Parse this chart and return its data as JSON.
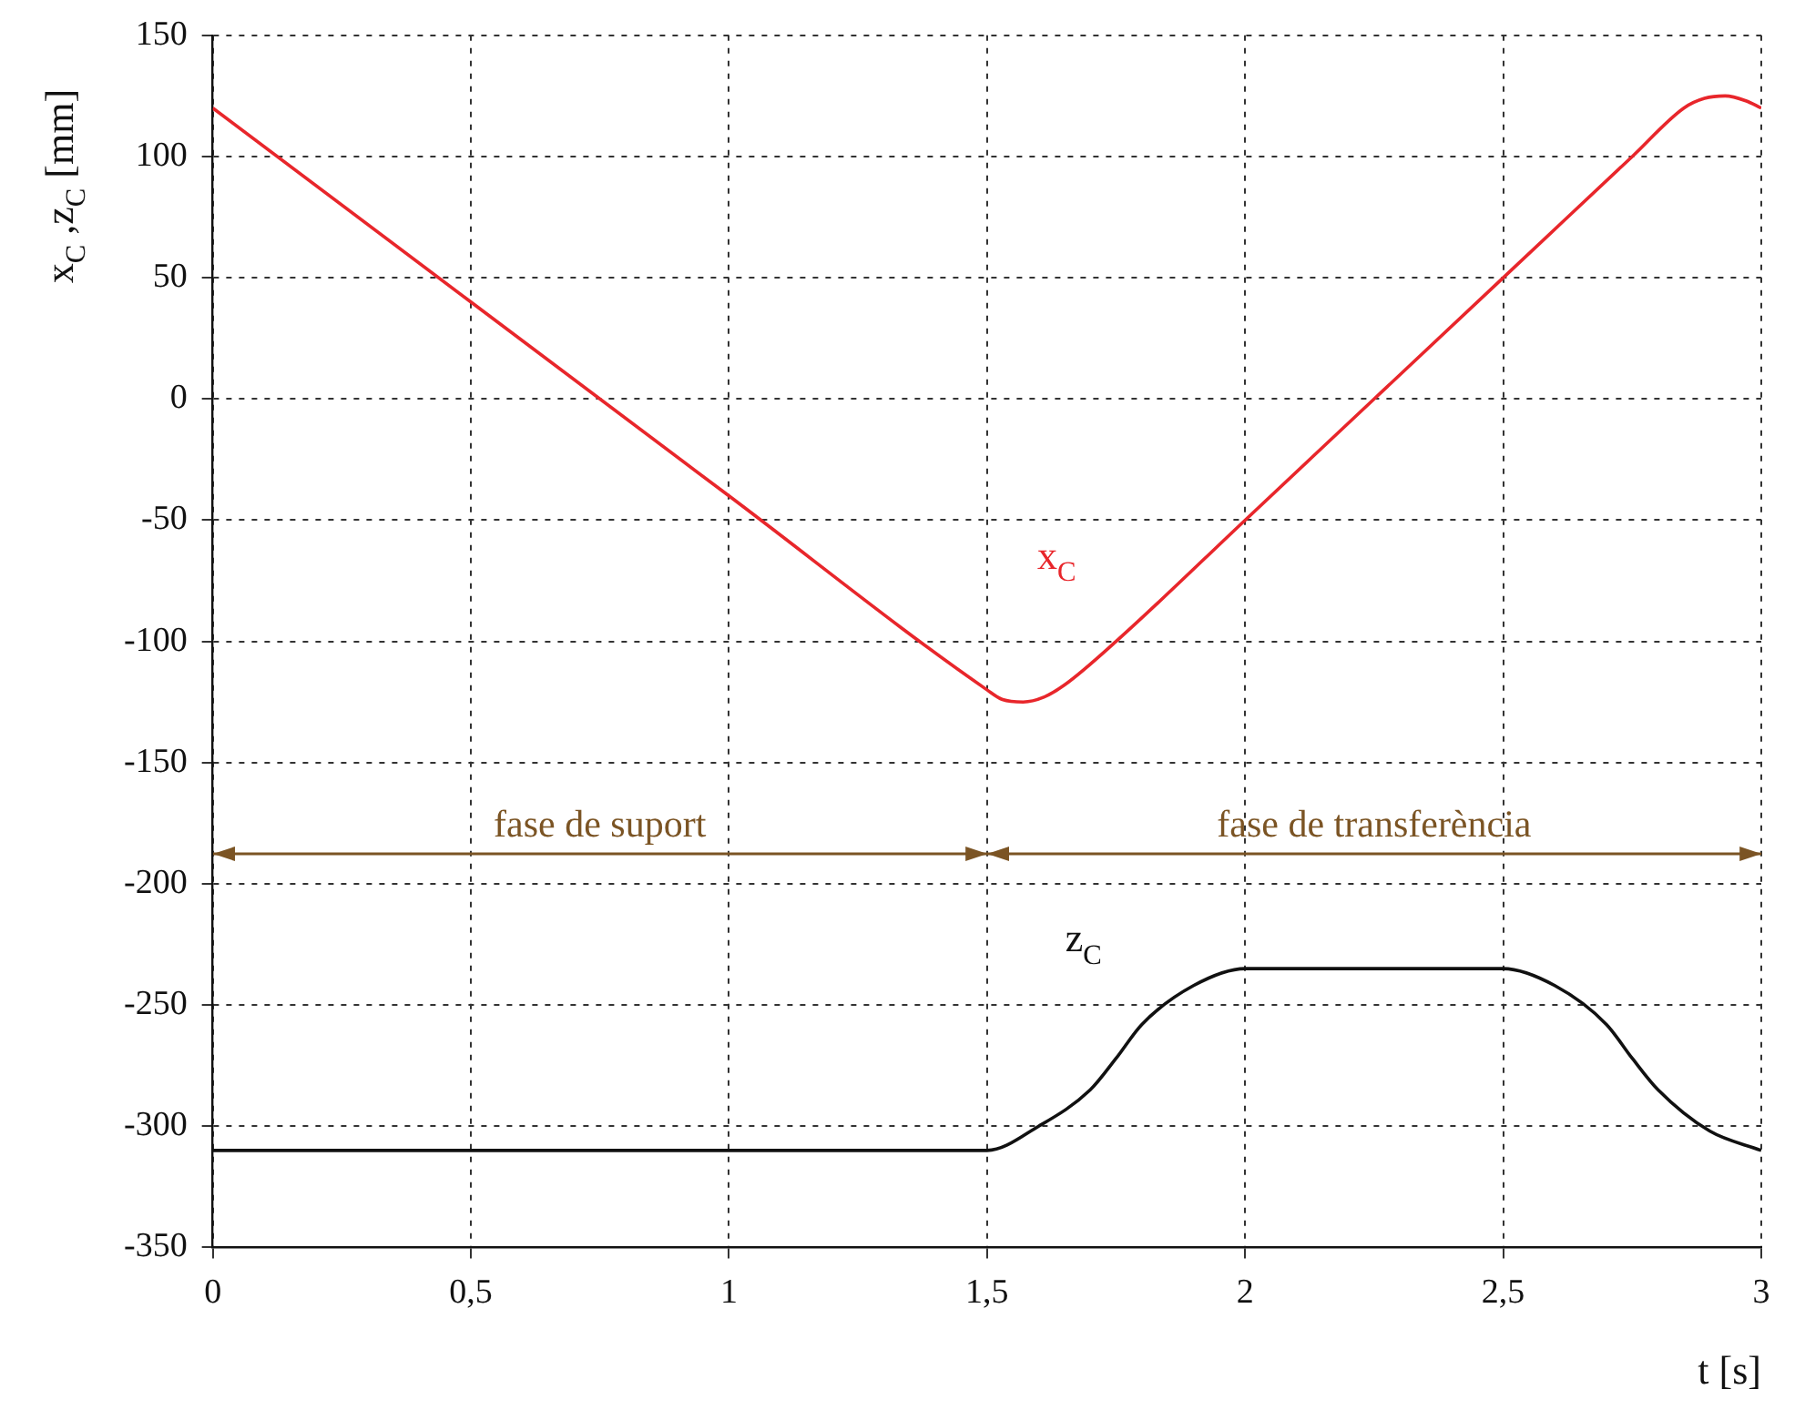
{
  "chart_data": {
    "type": "line",
    "xlabel": "t [s]",
    "ylabel": "x$_{C}$ ,z$_{C}$ [mm]",
    "xlim": [
      0,
      3
    ],
    "xticks": [
      0,
      {
        "value": 0.5,
        "label": "0,5"
      },
      1,
      {
        "value": 1.5,
        "label": "1,5"
      },
      2,
      {
        "value": 2.5,
        "label": "2,5"
      },
      3
    ],
    "ylim": [
      -350,
      150
    ],
    "yticks": [
      -350,
      -300,
      -250,
      -200,
      -150,
      -100,
      -50,
      0,
      50,
      100,
      150
    ],
    "grid": true,
    "legend": false,
    "marker": "none",
    "line_style": "solid",
    "annotations": [
      "fase de suport",
      "fase de transferència"
    ],
    "series": [
      {
        "name": "x$_{C}$",
        "color": "#e8262b",
        "x": [
          0,
          0.5,
          1,
          1.5,
          1.53,
          1.57,
          1.61,
          1.65,
          1.75,
          2,
          2.25,
          2.5,
          2.75,
          2.85,
          2.89,
          2.93,
          2.97,
          3
        ],
        "values": [
          120,
          40,
          -40,
          -120,
          -124,
          -125,
          -123,
          -118,
          -100,
          -50,
          0,
          50,
          100,
          120,
          124,
          125,
          123,
          120
        ]
      },
      {
        "name": "z$_{C}$",
        "color": "#111111",
        "x": [
          0,
          0.5,
          1,
          1.5,
          1.6,
          1.7,
          1.75,
          1.8,
          1.9,
          2,
          2.5,
          2.6,
          2.7,
          2.75,
          2.8,
          2.9,
          3
        ],
        "values": [
          -310,
          -310,
          -310,
          -310,
          -300,
          -285,
          -272,
          -258,
          -242,
          -235,
          -235,
          -242,
          -258,
          -272,
          -285,
          -302,
          -310
        ]
      }
    ]
  }
}
